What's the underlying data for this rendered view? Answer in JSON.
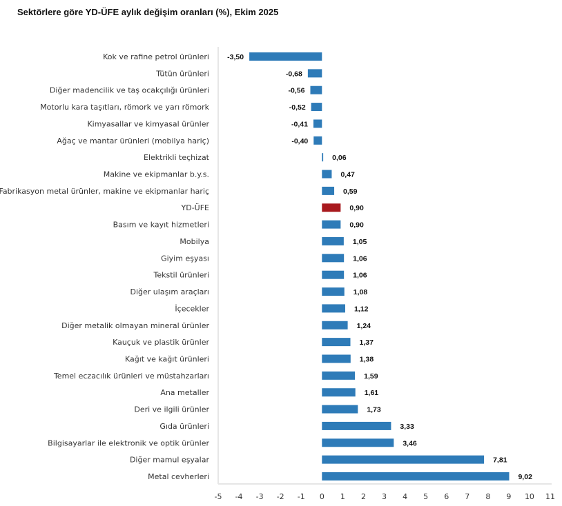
{
  "chart_data": {
    "type": "bar",
    "orientation": "horizontal",
    "title": "Sektörlere göre YD-ÜFE aylık değişim oranları (%), Ekim 2025",
    "categories": [
      "Kok ve rafine petrol ürünleri",
      "Tütün ürünleri",
      "Diğer madencilik ve taş ocakçılığı ürünleri",
      "Motorlu kara taşıtları, römork ve yarı römork",
      "Kimyasallar ve kimyasal ürünler",
      "Ağaç ve mantar ürünleri (mobilya hariç)",
      "Elektrikli teçhizat",
      "Makine ve ekipmanlar b.y.s.",
      "Fabrikasyon metal ürünler, makine ve ekipmanlar hariç",
      "YD-ÜFE",
      "Basım ve kayıt hizmetleri",
      "Mobilya",
      "Giyim eşyası",
      "Tekstil ürünleri",
      "Diğer ulaşım araçları",
      "İçecekler",
      "Diğer metalik olmayan mineral ürünler",
      "Kauçuk ve plastik ürünler",
      "Kağıt ve kağıt ürünleri",
      "Temel eczacılık ürünleri ve müstahzarları",
      "Ana metaller",
      "Deri ve ilgili ürünler",
      "Gıda ürünleri",
      "Bilgisayarlar ile elektronik ve optik ürünler",
      "Diğer mamul eşyalar",
      "Metal cevherleri"
    ],
    "values": [
      -3.5,
      -0.68,
      -0.56,
      -0.52,
      -0.41,
      -0.4,
      0.06,
      0.47,
      0.59,
      0.9,
      0.9,
      1.05,
      1.06,
      1.06,
      1.08,
      1.12,
      1.24,
      1.37,
      1.38,
      1.59,
      1.61,
      1.73,
      3.33,
      3.46,
      7.81,
      9.02
    ],
    "data_labels": [
      "-3,50",
      "-0,68",
      "-0,56",
      "-0,52",
      "-0,41",
      "-0,40",
      "0,06",
      "0,47",
      "0,59",
      "0,90",
      "0,90",
      "1,05",
      "1,06",
      "1,06",
      "1,08",
      "1,12",
      "1,24",
      "1,37",
      "1,38",
      "1,59",
      "1,61",
      "1,73",
      "3,33",
      "3,46",
      "7,81",
      "9,02"
    ],
    "highlight_category": "YD-ÜFE",
    "xlim": [
      -5,
      11
    ],
    "xticks": [
      "-5",
      "-4",
      "-3",
      "-2",
      "-1",
      "0",
      "1",
      "2",
      "3",
      "4",
      "5",
      "6",
      "7",
      "8",
      "9",
      "10",
      "11"
    ],
    "xlabel": "",
    "ylabel": "",
    "grid": false,
    "colors": {
      "bar": "#2e7bb8",
      "highlight": "#a8191e"
    }
  }
}
